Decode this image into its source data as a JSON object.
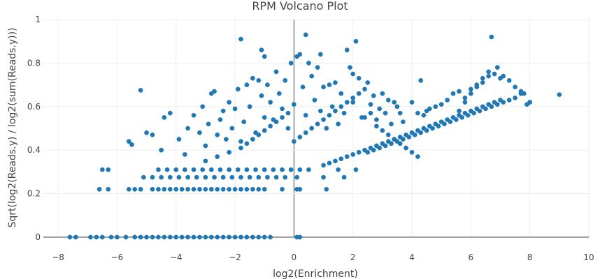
{
  "chart_data": {
    "type": "scatter",
    "title": "RPM Volcano Plot",
    "xlabel": "log2(Enrichment)",
    "ylabel": "Sqrt(log2(Reads.y) / log2(sum(Reads.y)))",
    "xlim": [
      -8.5,
      10
    ],
    "ylim": [
      0,
      1
    ],
    "xticks": [
      -8,
      -6,
      -4,
      -2,
      0,
      2,
      4,
      6,
      8,
      10
    ],
    "xtick_labels": [
      "−8",
      "−6",
      "−4",
      "−2",
      "0",
      "2",
      "4",
      "6",
      "8",
      "10"
    ],
    "yticks": [
      0,
      0.2,
      0.4,
      0.6,
      0.8,
      1
    ],
    "ytick_labels": [
      "0",
      "0.2",
      "0.4",
      "0.6",
      "0.8",
      "1"
    ],
    "grid": true,
    "marker_color": "#1f77b4",
    "points": [
      [
        -7.6,
        0
      ],
      [
        -7.4,
        0
      ],
      [
        -6.9,
        0
      ],
      [
        -6.7,
        0
      ],
      [
        -6.5,
        0
      ],
      [
        -6.2,
        0
      ],
      [
        -6.0,
        0
      ],
      [
        -5.7,
        0
      ],
      [
        -5.4,
        0
      ],
      [
        -5.2,
        0
      ],
      [
        -5.0,
        0
      ],
      [
        -4.8,
        0
      ],
      [
        -4.6,
        0
      ],
      [
        -4.4,
        0
      ],
      [
        -4.2,
        0
      ],
      [
        -4.0,
        0
      ],
      [
        -3.8,
        0
      ],
      [
        -3.6,
        0
      ],
      [
        -3.4,
        0
      ],
      [
        -3.2,
        0
      ],
      [
        -3.0,
        0
      ],
      [
        -2.8,
        0
      ],
      [
        -2.6,
        0
      ],
      [
        -2.4,
        0
      ],
      [
        -2.2,
        0
      ],
      [
        -2.0,
        0
      ],
      [
        -1.8,
        0
      ],
      [
        -1.6,
        0
      ],
      [
        -1.4,
        0
      ],
      [
        -1.2,
        0
      ],
      [
        -1.0,
        0
      ],
      [
        -0.8,
        0
      ],
      [
        0.1,
        0
      ],
      [
        0.2,
        0
      ],
      [
        -6.6,
        0.22
      ],
      [
        -6.3,
        0.22
      ],
      [
        -5.6,
        0.22
      ],
      [
        -5.4,
        0.22
      ],
      [
        -5.2,
        0.22
      ],
      [
        -4.8,
        0.22
      ],
      [
        -4.6,
        0.22
      ],
      [
        -4.4,
        0.22
      ],
      [
        -4.2,
        0.22
      ],
      [
        -4.0,
        0.22
      ],
      [
        -3.8,
        0.22
      ],
      [
        -3.6,
        0.22
      ],
      [
        -3.4,
        0.22
      ],
      [
        -3.2,
        0.22
      ],
      [
        -3.0,
        0.22
      ],
      [
        -2.8,
        0.22
      ],
      [
        -2.6,
        0.22
      ],
      [
        -2.4,
        0.22
      ],
      [
        -2.2,
        0.22
      ],
      [
        -2.0,
        0.22
      ],
      [
        -1.8,
        0.22
      ],
      [
        -1.6,
        0.22
      ],
      [
        -1.4,
        0.22
      ],
      [
        -1.2,
        0.22
      ],
      [
        -1.0,
        0.22
      ],
      [
        -0.4,
        0.22
      ],
      [
        0.1,
        0.22
      ],
      [
        0.2,
        0.22
      ],
      [
        1.1,
        0.22
      ],
      [
        -5.1,
        0.275
      ],
      [
        -4.8,
        0.275
      ],
      [
        -4.5,
        0.275
      ],
      [
        -4.2,
        0.275
      ],
      [
        -3.9,
        0.275
      ],
      [
        -3.6,
        0.275
      ],
      [
        -3.3,
        0.275
      ],
      [
        -3.0,
        0.275
      ],
      [
        -2.7,
        0.275
      ],
      [
        -2.4,
        0.275
      ],
      [
        -2.1,
        0.275
      ],
      [
        -1.8,
        0.275
      ],
      [
        -1.5,
        0.275
      ],
      [
        -1.2,
        0.275
      ],
      [
        -0.9,
        0.275
      ],
      [
        -0.6,
        0.275
      ],
      [
        -0.3,
        0.275
      ],
      [
        0.1,
        0.275
      ],
      [
        1.0,
        0.275
      ],
      [
        1.7,
        0.275
      ],
      [
        -6.5,
        0.31
      ],
      [
        -6.3,
        0.31
      ],
      [
        -4.6,
        0.31
      ],
      [
        -4.3,
        0.31
      ],
      [
        -4.0,
        0.31
      ],
      [
        -3.7,
        0.31
      ],
      [
        -3.4,
        0.31
      ],
      [
        -3.1,
        0.31
      ],
      [
        -2.8,
        0.31
      ],
      [
        -2.5,
        0.31
      ],
      [
        -2.2,
        0.31
      ],
      [
        -1.9,
        0.31
      ],
      [
        -1.6,
        0.31
      ],
      [
        -1.3,
        0.31
      ],
      [
        -1.0,
        0.31
      ],
      [
        -0.7,
        0.31
      ],
      [
        -0.4,
        0.31
      ],
      [
        -0.1,
        0.31
      ],
      [
        0.2,
        0.31
      ],
      [
        0.5,
        0.31
      ],
      [
        1.5,
        0.31
      ],
      [
        2.1,
        0.31
      ],
      [
        -5.2,
        0.675
      ],
      [
        -5.6,
        0.44
      ],
      [
        -5.5,
        0.425
      ],
      [
        -5.0,
        0.48
      ],
      [
        -4.8,
        0.47
      ],
      [
        -4.5,
        0.4
      ],
      [
        -4.4,
        0.55
      ],
      [
        -4.2,
        0.57
      ],
      [
        -3.9,
        0.45
      ],
      [
        -3.7,
        0.38
      ],
      [
        -3.6,
        0.5
      ],
      [
        -3.4,
        0.56
      ],
      [
        -3.2,
        0.48
      ],
      [
        -3.1,
        0.6
      ],
      [
        -3.0,
        0.42
      ],
      [
        -2.9,
        0.52
      ],
      [
        -2.8,
        0.66
      ],
      [
        -2.7,
        0.67
      ],
      [
        -2.6,
        0.47
      ],
      [
        -2.5,
        0.54
      ],
      [
        -2.4,
        0.58
      ],
      [
        -2.3,
        0.45
      ],
      [
        -2.2,
        0.62
      ],
      [
        -2.1,
        0.5
      ],
      [
        -2.0,
        0.59
      ],
      [
        -1.9,
        0.68
      ],
      [
        -1.8,
        0.44
      ],
      [
        -1.7,
        0.53
      ],
      [
        -1.6,
        0.7
      ],
      [
        -1.5,
        0.6
      ],
      [
        -1.4,
        0.73
      ],
      [
        -1.3,
        0.48
      ],
      [
        -1.2,
        0.72
      ],
      [
        -1.1,
        0.65
      ],
      [
        -1.0,
        0.55
      ],
      [
        -0.9,
        0.7
      ],
      [
        -0.8,
        0.62
      ],
      [
        -0.7,
        0.54
      ],
      [
        -0.6,
        0.76
      ],
      [
        -0.5,
        0.66
      ],
      [
        -0.4,
        0.59
      ],
      [
        -0.3,
        0.72
      ],
      [
        -0.2,
        0.5
      ],
      [
        -0.1,
        0.8
      ],
      [
        0.0,
        0.61
      ],
      [
        0.1,
        0.83
      ],
      [
        0.2,
        0.84
      ],
      [
        0.3,
        0.69
      ],
      [
        0.4,
        0.56
      ],
      [
        0.5,
        0.8
      ],
      [
        0.6,
        0.74
      ],
      [
        0.7,
        0.63
      ],
      [
        0.8,
        0.78
      ],
      [
        0.9,
        0.58
      ],
      [
        1.0,
        0.69
      ],
      [
        1.1,
        0.5
      ],
      [
        1.2,
        0.7
      ],
      [
        1.3,
        0.6
      ],
      [
        1.4,
        0.71
      ],
      [
        1.5,
        0.52
      ],
      [
        1.6,
        0.66
      ],
      [
        1.7,
        0.57
      ],
      [
        1.8,
        0.86
      ],
      [
        1.9,
        0.78
      ],
      [
        2.0,
        0.62
      ],
      [
        2.1,
        0.9
      ],
      [
        2.2,
        0.73
      ],
      [
        2.3,
        0.55
      ],
      [
        2.4,
        0.68
      ],
      [
        2.5,
        0.71
      ],
      [
        2.6,
        0.61
      ],
      [
        2.7,
        0.65
      ],
      [
        2.8,
        0.54
      ],
      [
        2.9,
        0.59
      ],
      [
        3.0,
        0.66
      ],
      [
        3.1,
        0.57
      ],
      [
        3.2,
        0.63
      ],
      [
        3.3,
        0.52
      ],
      [
        3.4,
        0.62
      ],
      [
        3.5,
        0.6
      ],
      [
        3.6,
        0.57
      ],
      [
        3.7,
        0.53
      ],
      [
        4.0,
        0.62
      ],
      [
        4.3,
        0.72
      ],
      [
        4.5,
        0.58
      ],
      [
        -1.8,
        0.91
      ],
      [
        -1.1,
        0.86
      ],
      [
        -1.0,
        0.83
      ],
      [
        0.4,
        0.93
      ],
      [
        0.9,
        0.84
      ],
      [
        2.0,
        0.75
      ],
      [
        -3.0,
        0.35
      ],
      [
        -2.6,
        0.37
      ],
      [
        -2.2,
        0.39
      ],
      [
        -1.8,
        0.41
      ],
      [
        -1.6,
        0.43
      ],
      [
        -1.4,
        0.45
      ],
      [
        -1.2,
        0.47
      ],
      [
        -1.0,
        0.49
      ],
      [
        -0.8,
        0.51
      ],
      [
        -0.6,
        0.53
      ],
      [
        -0.4,
        0.55
      ],
      [
        -0.2,
        0.57
      ],
      [
        0.0,
        0.44
      ],
      [
        0.2,
        0.46
      ],
      [
        0.4,
        0.48
      ],
      [
        0.6,
        0.5
      ],
      [
        0.8,
        0.52
      ],
      [
        1.0,
        0.54
      ],
      [
        1.2,
        0.56
      ],
      [
        1.4,
        0.58
      ],
      [
        1.6,
        0.6
      ],
      [
        1.8,
        0.62
      ],
      [
        2.0,
        0.64
      ],
      [
        2.2,
        0.66
      ],
      [
        2.4,
        0.55
      ],
      [
        2.6,
        0.57
      ],
      [
        2.8,
        0.51
      ],
      [
        3.0,
        0.49
      ],
      [
        3.2,
        0.47
      ],
      [
        3.4,
        0.45
      ],
      [
        3.6,
        0.43
      ],
      [
        3.8,
        0.41
      ],
      [
        4.0,
        0.39
      ],
      [
        4.2,
        0.37
      ],
      [
        1.0,
        0.33
      ],
      [
        1.2,
        0.34
      ],
      [
        1.4,
        0.35
      ],
      [
        1.6,
        0.36
      ],
      [
        1.8,
        0.37
      ],
      [
        2.0,
        0.38
      ],
      [
        2.2,
        0.39
      ],
      [
        2.4,
        0.4
      ],
      [
        2.6,
        0.41
      ],
      [
        2.8,
        0.42
      ],
      [
        3.0,
        0.43
      ],
      [
        3.2,
        0.44
      ],
      [
        3.4,
        0.45
      ],
      [
        3.6,
        0.46
      ],
      [
        3.8,
        0.47
      ],
      [
        4.0,
        0.48
      ],
      [
        4.2,
        0.49
      ],
      [
        4.4,
        0.5
      ],
      [
        4.6,
        0.51
      ],
      [
        4.8,
        0.52
      ],
      [
        5.0,
        0.53
      ],
      [
        5.2,
        0.54
      ],
      [
        5.4,
        0.55
      ],
      [
        5.6,
        0.56
      ],
      [
        5.8,
        0.57
      ],
      [
        6.0,
        0.58
      ],
      [
        6.2,
        0.59
      ],
      [
        6.4,
        0.6
      ],
      [
        6.6,
        0.61
      ],
      [
        6.8,
        0.62
      ],
      [
        7.0,
        0.63
      ],
      [
        2.5,
        0.39
      ],
      [
        2.7,
        0.4
      ],
      [
        2.9,
        0.41
      ],
      [
        3.1,
        0.42
      ],
      [
        3.3,
        0.43
      ],
      [
        3.5,
        0.44
      ],
      [
        3.7,
        0.45
      ],
      [
        3.9,
        0.46
      ],
      [
        4.1,
        0.47
      ],
      [
        4.3,
        0.48
      ],
      [
        4.5,
        0.49
      ],
      [
        4.7,
        0.5
      ],
      [
        4.9,
        0.51
      ],
      [
        5.1,
        0.52
      ],
      [
        5.3,
        0.53
      ],
      [
        5.5,
        0.54
      ],
      [
        5.7,
        0.55
      ],
      [
        5.9,
        0.56
      ],
      [
        6.1,
        0.57
      ],
      [
        6.3,
        0.58
      ],
      [
        6.5,
        0.59
      ],
      [
        6.7,
        0.6
      ],
      [
        6.9,
        0.61
      ],
      [
        7.1,
        0.62
      ],
      [
        7.3,
        0.63
      ],
      [
        7.5,
        0.64
      ],
      [
        7.7,
        0.66
      ],
      [
        7.9,
        0.61
      ],
      [
        8.0,
        0.62
      ],
      [
        5.6,
        0.58
      ],
      [
        5.8,
        0.62
      ],
      [
        6.0,
        0.66
      ],
      [
        6.2,
        0.7
      ],
      [
        6.4,
        0.73
      ],
      [
        6.6,
        0.76
      ],
      [
        6.7,
        0.92
      ],
      [
        6.9,
        0.78
      ],
      [
        7.1,
        0.74
      ],
      [
        7.3,
        0.72
      ],
      [
        7.5,
        0.69
      ],
      [
        7.7,
        0.67
      ],
      [
        7.8,
        0.66
      ],
      [
        8.0,
        0.62
      ],
      [
        9.0,
        0.655
      ],
      [
        4.2,
        0.57
      ],
      [
        4.4,
        0.56
      ],
      [
        4.6,
        0.59
      ],
      [
        4.8,
        0.6
      ],
      [
        5.0,
        0.61
      ],
      [
        5.2,
        0.63
      ],
      [
        5.4,
        0.66
      ],
      [
        5.6,
        0.67
      ],
      [
        5.8,
        0.64
      ],
      [
        6.0,
        0.68
      ],
      [
        6.2,
        0.69
      ],
      [
        6.4,
        0.71
      ],
      [
        6.6,
        0.74
      ],
      [
        6.8,
        0.75
      ],
      [
        7.0,
        0.73
      ]
    ]
  }
}
